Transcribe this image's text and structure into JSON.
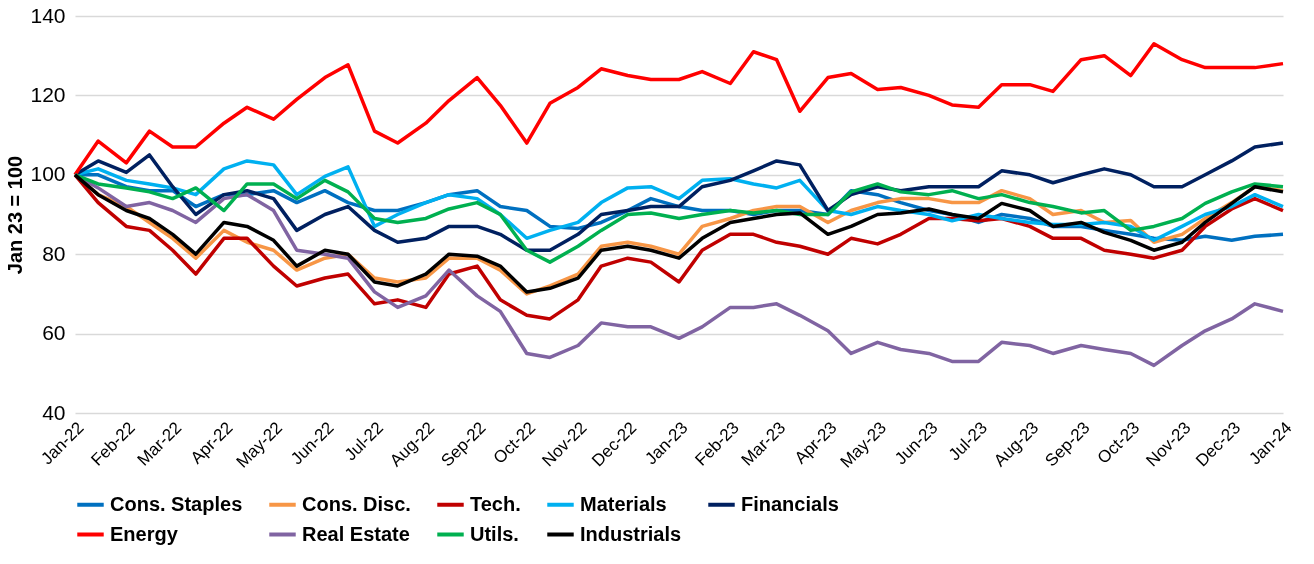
{
  "chart_data": {
    "type": "line",
    "ylabel": "Jan 23  = 100",
    "x": [
      "2022-01-01",
      "2022-01-15",
      "2022-02-01",
      "2022-02-15",
      "2022-03-01",
      "2022-03-15",
      "2022-04-01",
      "2022-04-15",
      "2022-05-01",
      "2022-05-15",
      "2022-06-01",
      "2022-06-15",
      "2022-07-01",
      "2022-07-15",
      "2022-08-01",
      "2022-08-15",
      "2022-09-01",
      "2022-09-15",
      "2022-10-01",
      "2022-10-15",
      "2022-11-01",
      "2022-11-15",
      "2022-12-01",
      "2022-12-15",
      "2023-01-01",
      "2023-01-15",
      "2023-02-01",
      "2023-02-15",
      "2023-03-01",
      "2023-03-15",
      "2023-04-01",
      "2023-04-15",
      "2023-05-01",
      "2023-05-15",
      "2023-06-01",
      "2023-06-15",
      "2023-07-01",
      "2023-07-15",
      "2023-08-01",
      "2023-08-15",
      "2023-09-01",
      "2023-09-15",
      "2023-10-01",
      "2023-10-15",
      "2023-11-01",
      "2023-11-15",
      "2023-12-01",
      "2023-12-15",
      "2024-01-01"
    ],
    "series": [
      {
        "name": "Cons. Staples",
        "color": "#0070c0",
        "values": [
          100,
          100,
          97,
          96,
          96,
          92,
          95,
          95,
          96,
          93,
          96,
          93,
          91,
          91,
          93,
          95,
          96,
          92,
          91,
          87,
          86.5,
          88,
          91,
          94,
          92,
          91,
          91,
          90,
          91,
          91,
          90,
          96,
          95,
          93,
          91,
          90,
          88,
          90,
          89,
          87,
          87,
          86,
          85,
          84,
          83.5,
          84.5,
          83.5,
          84.5,
          85
        ]
      },
      {
        "name": "Cons. Disc.",
        "color": "#f79646",
        "values": [
          100,
          95,
          92,
          88,
          84,
          79,
          86,
          83,
          81,
          76,
          79,
          80,
          74,
          73,
          74,
          79,
          79,
          76,
          70,
          72,
          75,
          82,
          83,
          82,
          80,
          87,
          89,
          91,
          92,
          92,
          88,
          91,
          93,
          94,
          94,
          93,
          93,
          96,
          94,
          90,
          91,
          88,
          88.5,
          83,
          85,
          89,
          93,
          97,
          96
        ]
      },
      {
        "name": "Tech.",
        "color": "#c00000",
        "values": [
          100,
          93,
          87,
          86,
          81,
          75,
          84,
          84,
          77,
          72,
          74,
          75,
          67.5,
          68.5,
          66.6,
          75,
          77,
          68.5,
          64.6,
          63.7,
          68.5,
          77,
          79,
          78,
          73,
          81,
          85,
          85,
          83,
          82,
          80,
          84,
          82.6,
          85,
          89,
          89,
          88.4,
          89,
          87,
          84,
          84,
          81,
          80,
          79,
          81,
          87,
          91.4,
          94,
          91
        ]
      },
      {
        "name": "Materials",
        "color": "#00b0f0",
        "values": [
          100,
          101.5,
          98.6,
          97.7,
          96.7,
          95,
          101.5,
          103.5,
          102.5,
          95,
          99.6,
          102,
          87,
          90,
          93,
          95,
          94,
          90,
          84,
          86,
          88,
          93,
          96.7,
          97,
          94,
          98.6,
          99,
          97.7,
          96.7,
          98.6,
          91,
          90,
          92,
          91,
          90,
          88.4,
          90,
          89,
          88,
          87.5,
          87.5,
          88,
          87,
          83.5,
          87,
          90,
          92,
          95,
          92
        ]
      },
      {
        "name": "Financials",
        "color": "#002060",
        "values": [
          100,
          103.5,
          100.6,
          105,
          97,
          90,
          95,
          96,
          94,
          86,
          90,
          92,
          86,
          83,
          84,
          87,
          87,
          85,
          81,
          81,
          85,
          90,
          91,
          92,
          92,
          97,
          98.6,
          101,
          103.5,
          102.5,
          91,
          95,
          97,
          96,
          97,
          97,
          97,
          101,
          100,
          98,
          100,
          101.5,
          100,
          97,
          97,
          100,
          103.5,
          107,
          108
        ]
      },
      {
        "name": "Energy",
        "color": "#ff0000",
        "values": [
          100,
          108.5,
          103,
          111,
          107,
          107,
          113,
          117,
          114,
          119,
          124.5,
          127.7,
          111,
          108,
          113,
          118.7,
          124.5,
          117.5,
          108,
          118,
          122,
          126.7,
          125,
          124,
          124,
          126,
          123,
          131,
          129,
          116,
          124.5,
          125.5,
          121.5,
          122,
          120,
          117.6,
          117,
          122.7,
          122.7,
          121,
          129,
          130,
          125,
          133,
          129,
          127,
          127,
          127,
          128
        ]
      },
      {
        "name": "Real Estate",
        "color": "#8064a2",
        "values": [
          100,
          96.7,
          92,
          93,
          91,
          88,
          94,
          95,
          91,
          81,
          80,
          79,
          70.5,
          66.6,
          69.5,
          76,
          69.5,
          65.6,
          55,
          54,
          57,
          62.7,
          61.7,
          61.7,
          58.8,
          61.7,
          66.6,
          66.6,
          67.5,
          64.6,
          60.7,
          55,
          57.8,
          56,
          55,
          53,
          53,
          57.8,
          57,
          55,
          57,
          56,
          55,
          52,
          57,
          60.7,
          63.7,
          67.5,
          65.6
        ]
      },
      {
        "name": "Utils.",
        "color": "#00b050",
        "values": [
          100,
          97.7,
          96.7,
          95.7,
          94,
          96.7,
          91,
          97.7,
          97.7,
          94,
          98.6,
          95.7,
          89,
          88,
          89,
          91.4,
          93,
          90,
          81,
          78,
          82,
          86,
          90,
          90.4,
          89,
          90,
          91,
          90.4,
          91,
          90,
          90,
          95.7,
          97.7,
          95.7,
          95,
          96,
          94,
          95,
          93,
          92,
          90.4,
          91,
          86,
          87,
          89,
          92.8,
          95.7,
          97.7,
          97
        ]
      },
      {
        "name": "Industrials",
        "color": "#000000",
        "values": [
          100,
          95,
          91,
          89,
          85,
          80,
          88,
          87,
          83.5,
          77,
          81,
          80,
          73,
          72,
          75,
          80,
          79.5,
          77,
          70.5,
          71.4,
          74,
          81,
          82,
          81,
          79,
          84,
          88,
          89,
          90,
          90.4,
          85,
          87,
          90,
          90.4,
          91.4,
          90,
          89,
          92.8,
          91,
          87,
          88,
          85.5,
          83.5,
          81,
          83,
          88,
          92.8,
          97,
          95.7
        ]
      }
    ],
    "xlim": [
      "2022-01-01",
      "2024-01-01"
    ],
    "xticks": [
      {
        "value": "2022-01-01",
        "label": "Jan-22"
      },
      {
        "value": "2022-02-01",
        "label": "Feb-22"
      },
      {
        "value": "2022-03-01",
        "label": "Mar-22"
      },
      {
        "value": "2022-04-01",
        "label": "Apr-22"
      },
      {
        "value": "2022-05-01",
        "label": "May-22"
      },
      {
        "value": "2022-06-01",
        "label": "Jun-22"
      },
      {
        "value": "2022-07-01",
        "label": "Jul-22"
      },
      {
        "value": "2022-08-01",
        "label": "Aug-22"
      },
      {
        "value": "2022-09-01",
        "label": "Sep-22"
      },
      {
        "value": "2022-10-01",
        "label": "Oct-22"
      },
      {
        "value": "2022-11-01",
        "label": "Nov-22"
      },
      {
        "value": "2022-12-01",
        "label": "Dec-22"
      },
      {
        "value": "2023-01-01",
        "label": "Jan-23"
      },
      {
        "value": "2023-02-01",
        "label": "Feb-23"
      },
      {
        "value": "2023-03-01",
        "label": "Mar-23"
      },
      {
        "value": "2023-04-01",
        "label": "Apr-23"
      },
      {
        "value": "2023-05-01",
        "label": "May-23"
      },
      {
        "value": "2023-06-01",
        "label": "Jun-23"
      },
      {
        "value": "2023-07-01",
        "label": "Jul-23"
      },
      {
        "value": "2023-08-01",
        "label": "Aug-23"
      },
      {
        "value": "2023-09-01",
        "label": "Sep-23"
      },
      {
        "value": "2023-10-01",
        "label": "Oct-23"
      },
      {
        "value": "2023-11-01",
        "label": "Nov-23"
      },
      {
        "value": "2023-12-01",
        "label": "Dec-23"
      },
      {
        "value": "2024-01-01",
        "label": "Jan-24"
      }
    ],
    "ylim": [
      40,
      140
    ],
    "yticks": [
      40,
      60,
      80,
      100,
      120,
      140
    ],
    "grid": "y",
    "legend": "bottom",
    "marker": "none",
    "line_style": "solid"
  }
}
